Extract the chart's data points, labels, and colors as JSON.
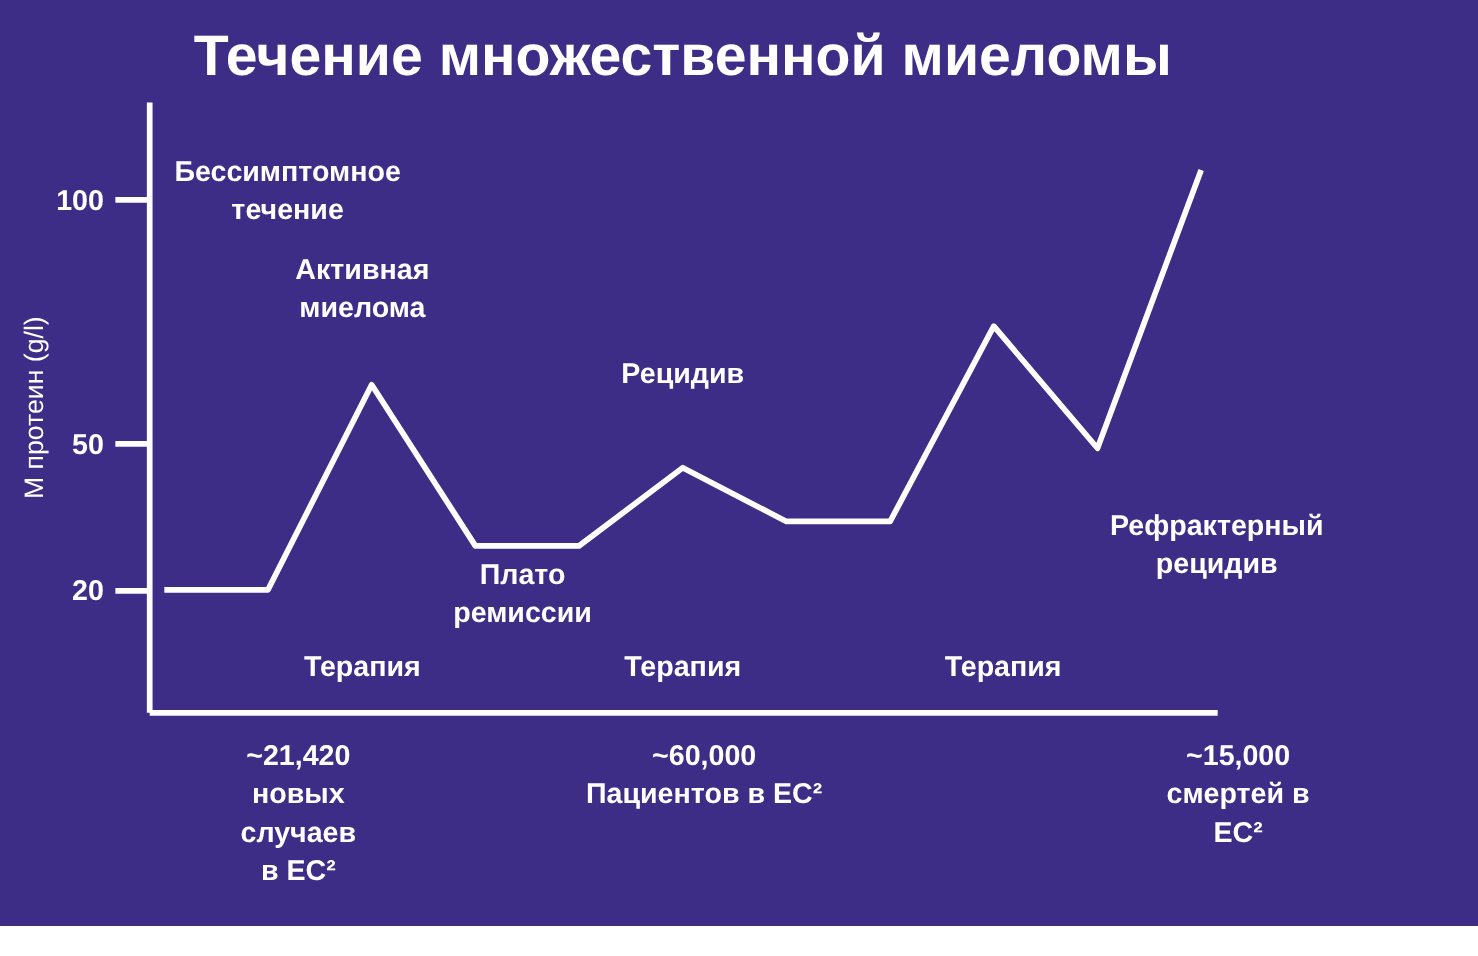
{
  "chart_data": {
    "type": "line",
    "title": "Течение множественной миеломы",
    "ylabel": "М протеин (g/l)",
    "categories": [
      null,
      null,
      null,
      null,
      null,
      null,
      null,
      null,
      null,
      null,
      null
    ],
    "series": [
      {
        "color": "#ffffff",
        "values": [
          20,
          20,
          62,
          29,
          29,
          45,
          34,
          34,
          74,
          49,
          106
        ]
      }
    ],
    "ylim": [
      -5,
      120
    ],
    "yticks": [
      20,
      50,
      100
    ],
    "tick_labels": "y",
    "grid": false,
    "marker": "none",
    "line_style": "solid",
    "annotations": [
      "Бессимптомное\nтечение",
      "Активная\nмиелома",
      "Плато\nремиссии",
      "Рецидив",
      "Рефрактерный\nрецидив",
      "Терапия",
      "Терапия",
      "Терапия",
      "~21,420\nновых\nслучаев\nв ЕС²",
      "~60,000\nПациентов в ЕС²",
      "~15,000\nсмертей в\nЕС²"
    ]
  }
}
